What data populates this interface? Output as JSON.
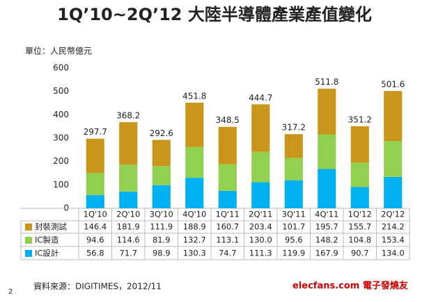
{
  "chart_data": {
    "type": "stacked_bar",
    "title": "1Q’10~2Q’12 大陸半導體產業產值變化",
    "unit_label": "單位：人民幣億元",
    "source": "資料來源：DIGITIMES，2012/11",
    "page_number": "2",
    "watermark": "elecfans.com 電子發燒友",
    "categories": [
      "1Q'10",
      "2Q'10",
      "3Q'10",
      "4Q'10",
      "1Q'11",
      "2Q'11",
      "3Q'11",
      "4Q'11",
      "1Q'12",
      "2Q'12"
    ],
    "series": [
      {
        "name": "封裝測試",
        "color": "#c9961a",
        "values": [
          146.4,
          181.9,
          111.9,
          188.9,
          160.7,
          203.4,
          101.7,
          195.7,
          155.7,
          214.2
        ]
      },
      {
        "name": "IC製造",
        "color": "#92d050",
        "values": [
          94.6,
          114.6,
          81.9,
          132.7,
          113.1,
          130.0,
          95.6,
          148.2,
          104.8,
          153.4
        ],
        "value_labels": [
          "94.6",
          "114.6",
          "81.9",
          "132.7",
          "113.1",
          "130.0",
          "95.6",
          "148.2",
          "104.8",
          "153.4"
        ]
      },
      {
        "name": "IC設計",
        "color": "#00b0f0",
        "values": [
          56.8,
          71.7,
          98.9,
          130.3,
          74.7,
          111.3,
          119.9,
          167.9,
          90.7,
          134.0
        ],
        "value_labels": [
          "56.8",
          "71.7",
          "98.9",
          "130.3",
          "74.7",
          "111.3",
          "119.9",
          "167.9",
          "90.7",
          "134.0"
        ]
      }
    ],
    "totals": [
      297.7,
      368.2,
      292.6,
      451.8,
      348.5,
      444.7,
      317.2,
      511.8,
      351.2,
      501.6
    ],
    "ylim": [
      0,
      600
    ],
    "yticks": [
      0,
      100,
      200,
      300,
      400,
      500,
      600
    ],
    "grid": false
  }
}
